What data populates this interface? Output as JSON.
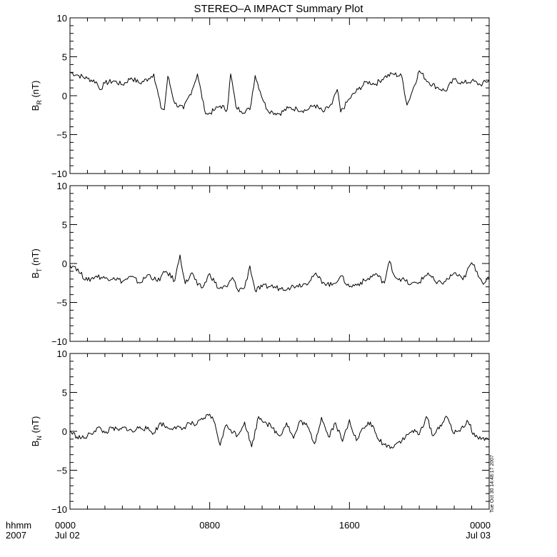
{
  "title": "STEREO–A IMPACT Summary Plot",
  "timestamp": "Tue Oct 30 14:48:17 2007",
  "x_axis": {
    "row1_label": "hhmm",
    "row2_label": "2007",
    "ticks": [
      {
        "hour": 0,
        "time": "0000",
        "date": "Jul 02"
      },
      {
        "hour": 8,
        "time": "0800",
        "date": ""
      },
      {
        "hour": 16,
        "time": "1600",
        "date": ""
      },
      {
        "hour": 24,
        "time": "0000",
        "date": "Jul 03"
      }
    ]
  },
  "chart_data": [
    {
      "type": "line",
      "ylabel_main": "B",
      "ylabel_sub": "R",
      "ylabel_unit": " (nT)",
      "xlim": [
        0,
        24
      ],
      "ylim": [
        -10,
        10
      ],
      "yticks": [
        -10,
        -5,
        0,
        5,
        10
      ],
      "x": [
        0,
        0.5,
        1,
        1.5,
        1.7,
        2,
        2.5,
        3,
        3.5,
        4,
        4.5,
        4.8,
        5.2,
        5.4,
        5.6,
        6,
        6.5,
        7,
        7.3,
        7.7,
        7.9,
        8.3,
        8.6,
        9,
        9.2,
        9.5,
        9.8,
        10.3,
        10.6,
        11.1,
        11.3,
        11.6,
        12,
        12.5,
        13,
        13.5,
        14,
        14.5,
        15,
        15.3,
        15.5,
        16,
        16.5,
        17,
        17.5,
        18,
        18.5,
        19,
        19.3,
        19.6,
        20,
        20.5,
        21,
        21.5,
        22,
        22.5,
        23,
        23.5,
        24
      ],
      "y": [
        3,
        2.6,
        2.2,
        1.8,
        0.8,
        1.6,
        1.9,
        1.4,
        2.3,
        1.6,
        2.2,
        2.8,
        -1.5,
        -1.8,
        2.5,
        -1,
        -1.7,
        0.8,
        2.8,
        -1.8,
        -2.4,
        -1.8,
        -1.3,
        -1.8,
        2.8,
        -1.4,
        -2,
        -1.8,
        2.6,
        -0.8,
        -1.8,
        -2.1,
        -2.3,
        -1.6,
        -1.7,
        -1.9,
        -1.2,
        -2.1,
        -1.1,
        0.8,
        -2.1,
        -0.4,
        0.8,
        1.8,
        1.5,
        2.4,
        2.8,
        2.5,
        -1.2,
        0.6,
        3.2,
        1.8,
        1.1,
        0.6,
        2.1,
        1.6,
        1.9,
        1.4,
        2
      ]
    },
    {
      "type": "line",
      "ylabel_main": "B",
      "ylabel_sub": "T",
      "ylabel_unit": " (nT)",
      "xlim": [
        0,
        24
      ],
      "ylim": [
        -10,
        10
      ],
      "yticks": [
        -10,
        -5,
        0,
        5,
        10
      ],
      "x": [
        0,
        0.3,
        0.6,
        1,
        1.5,
        2,
        2.5,
        3,
        3.5,
        4,
        4.5,
        5,
        5.5,
        6,
        6.3,
        6.6,
        7,
        7.3,
        7.6,
        8,
        8.5,
        9,
        9.3,
        9.6,
        10,
        10.3,
        10.6,
        11,
        11.5,
        12,
        12.5,
        13,
        13.5,
        14,
        14.5,
        15,
        15.5,
        16,
        16.5,
        17,
        17.5,
        18,
        18.3,
        18.6,
        19,
        19.5,
        20,
        20.5,
        21,
        21.5,
        22,
        22.5,
        23,
        23.3,
        23.6,
        24
      ],
      "y": [
        -0.2,
        -0.4,
        -1.3,
        -2.2,
        -1.6,
        -1.9,
        -1.8,
        -2.3,
        -1.7,
        -2.5,
        -1.4,
        -2.3,
        -1,
        -2.2,
        1.1,
        -2.6,
        -1.2,
        -2.8,
        -3.1,
        -1.3,
        -3.2,
        -3,
        -1.8,
        -3.4,
        -3.1,
        -0.3,
        -3.5,
        -3,
        -2.9,
        -3.2,
        -3.1,
        -2.8,
        -2.6,
        -1.4,
        -2.4,
        -2.8,
        -1.6,
        -3,
        -2.6,
        -2.1,
        -1.3,
        -2.5,
        0.3,
        -1.7,
        -2,
        -2.7,
        -2.4,
        -1.2,
        -2.6,
        -2.3,
        -1.2,
        -2.1,
        0.1,
        -1,
        -2.4,
        -2
      ]
    },
    {
      "type": "line",
      "ylabel_main": "B",
      "ylabel_sub": "N",
      "ylabel_unit": " (nT)",
      "xlim": [
        0,
        24
      ],
      "ylim": [
        -10,
        10
      ],
      "yticks": [
        -10,
        -5,
        0,
        5,
        10
      ],
      "x": [
        0,
        0.4,
        0.8,
        1.2,
        1.6,
        2,
        2.4,
        2.8,
        3.2,
        3.6,
        4,
        4.4,
        4.8,
        5.2,
        5.6,
        6,
        6.4,
        6.8,
        7.2,
        7.6,
        8,
        8.3,
        8.6,
        8.9,
        9.2,
        9.6,
        10,
        10.4,
        10.8,
        11.2,
        11.6,
        12,
        12.4,
        12.8,
        13.2,
        13.6,
        14,
        14.4,
        14.8,
        15.2,
        15.6,
        16,
        16.4,
        16.8,
        17.2,
        17.6,
        18,
        18.4,
        18.8,
        19.2,
        19.6,
        20,
        20.4,
        20.8,
        21.2,
        21.6,
        22,
        22.4,
        22.8,
        23.2,
        23.6,
        24
      ],
      "y": [
        0,
        -0.7,
        -0.9,
        -0.3,
        0.5,
        -0.2,
        0.4,
        0.1,
        0.5,
        -0.1,
        0.6,
        0.3,
        -0.2,
        1.1,
        0.4,
        0.6,
        0.2,
        1.1,
        0.8,
        1.5,
        2.2,
        1,
        -1.8,
        0.7,
        0.2,
        -0.5,
        1.2,
        -2,
        1.9,
        1.2,
        0.4,
        -0.6,
        1.1,
        -0.9,
        1.4,
        0.6,
        -1.6,
        1.8,
        -0.7,
        1.1,
        -1.3,
        1.5,
        -1.2,
        0.4,
        1.2,
        -0.9,
        -1.7,
        -2,
        -1.4,
        -0.8,
        0.1,
        -0.4,
        1.9,
        -0.6,
        0.8,
        1.8,
        -0.3,
        0.4,
        1.2,
        -0.7,
        -0.9,
        -1.1
      ]
    }
  ]
}
